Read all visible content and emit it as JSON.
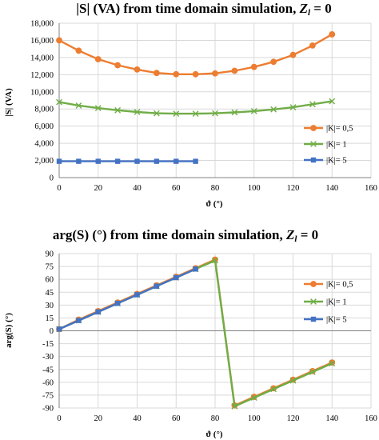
{
  "chart_data": [
    {
      "type": "line",
      "title": "|S| (VA) from time domain simulation, ",
      "title_math": "Z",
      "title_math_sub": "l",
      "title_tail": " = 0",
      "xlabel": "ϑ (°)",
      "ylabel": "|S| (VA)",
      "xlim": [
        0,
        160
      ],
      "ylim": [
        0,
        18000
      ],
      "x_ticks": [
        "0",
        "20",
        "40",
        "60",
        "80",
        "100",
        "120",
        "140",
        "160"
      ],
      "x_tick_values": [
        0,
        20,
        40,
        60,
        80,
        100,
        120,
        140,
        160
      ],
      "y_ticks": [
        "0",
        "2,000",
        "4,000",
        "6,000",
        "8,000",
        "10,000",
        "12,000",
        "14,000",
        "16,000",
        "18,000"
      ],
      "y_tick_values": [
        0,
        2000,
        4000,
        6000,
        8000,
        10000,
        12000,
        14000,
        16000,
        18000
      ],
      "grid": true,
      "legend_position": "right",
      "series": [
        {
          "name": "|K|= 0,5",
          "color": "#ed7d31",
          "marker": "circle",
          "x": [
            0,
            10,
            20,
            30,
            40,
            50,
            60,
            70,
            80,
            90,
            100,
            110,
            120,
            130,
            140
          ],
          "y": [
            16000,
            14800,
            13800,
            13100,
            12600,
            12200,
            12050,
            12050,
            12150,
            12450,
            12900,
            13500,
            14300,
            15400,
            16700
          ]
        },
        {
          "name": "|K|= 1",
          "color": "#70ad47",
          "marker": "x",
          "x": [
            0,
            10,
            20,
            30,
            40,
            50,
            60,
            70,
            80,
            90,
            100,
            110,
            120,
            130,
            140
          ],
          "y": [
            8800,
            8400,
            8100,
            7850,
            7650,
            7500,
            7450,
            7450,
            7500,
            7600,
            7750,
            7950,
            8200,
            8550,
            8900
          ]
        },
        {
          "name": "|K|= 5",
          "color": "#4472c4",
          "marker": "square",
          "x": [
            0,
            10,
            20,
            30,
            40,
            50,
            60,
            70
          ],
          "y": [
            1900,
            1900,
            1900,
            1900,
            1900,
            1900,
            1900,
            1900
          ]
        }
      ]
    },
    {
      "type": "line",
      "title": "arg(S) (°) from time domain simulation, ",
      "title_math": "Z",
      "title_math_sub": "l",
      "title_tail": " = 0",
      "xlabel": "ϑ (°)",
      "ylabel": "arg(S) (°)",
      "xlim": [
        0,
        160
      ],
      "ylim": [
        -90,
        90
      ],
      "x_ticks": [
        "0",
        "20",
        "40",
        "60",
        "80",
        "100",
        "120",
        "140",
        "160"
      ],
      "x_tick_values": [
        0,
        20,
        40,
        60,
        80,
        100,
        120,
        140,
        160
      ],
      "y_ticks": [
        "-90",
        "-75",
        "-60",
        "-45",
        "-30",
        "-15",
        "0",
        "15",
        "30",
        "45",
        "60",
        "75",
        "90"
      ],
      "y_tick_values": [
        -90,
        -75,
        -60,
        -45,
        -30,
        -15,
        0,
        15,
        30,
        45,
        60,
        75,
        90
      ],
      "grid": true,
      "legend_position": "right",
      "series": [
        {
          "name": "|K|= 0,5",
          "color": "#ed7d31",
          "marker": "circle",
          "x": [
            0,
            10,
            20,
            30,
            40,
            50,
            60,
            70,
            80,
            90,
            100,
            110,
            120,
            130,
            140
          ],
          "y": [
            2,
            13,
            23,
            33,
            43,
            53,
            63,
            73,
            83,
            -87,
            -77,
            -67,
            -57,
            -47,
            -37
          ]
        },
        {
          "name": "|K|= 1",
          "color": "#70ad47",
          "marker": "x",
          "x": [
            0,
            10,
            20,
            30,
            40,
            50,
            60,
            70,
            80,
            90,
            100,
            110,
            120,
            130,
            140
          ],
          "y": [
            2,
            12,
            22,
            32,
            42,
            52,
            62,
            72,
            82,
            -88,
            -78,
            -68,
            -58,
            -48,
            -38
          ]
        },
        {
          "name": "|K|= 5",
          "color": "#4472c4",
          "marker": "square",
          "x": [
            0,
            10,
            20,
            30,
            40,
            50,
            60,
            70
          ],
          "y": [
            2,
            12,
            22,
            32,
            42,
            52,
            62,
            72
          ]
        }
      ]
    }
  ]
}
